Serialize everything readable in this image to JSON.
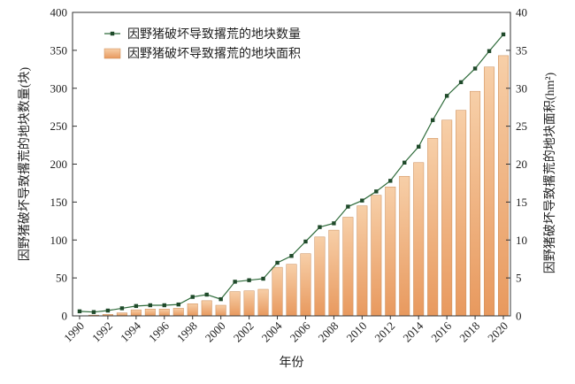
{
  "chart_data": {
    "type": "bar+line",
    "xlabel": "年份",
    "ylabel_left": "因野猪破坏导致撂荒的地块数量(块)",
    "ylabel_right": "因野猪破坏导致撂荒的地块面积(hm²)",
    "ylim_left": [
      0,
      400
    ],
    "ylim_right": [
      0,
      40
    ],
    "yticks_left": [
      0,
      50,
      100,
      150,
      200,
      250,
      300,
      350,
      400
    ],
    "yticks_right": [
      0,
      5,
      10,
      15,
      20,
      25,
      30,
      35,
      40
    ],
    "x": [
      1990,
      1991,
      1992,
      1993,
      1994,
      1995,
      1996,
      1997,
      1998,
      1999,
      2000,
      2001,
      2002,
      2003,
      2004,
      2005,
      2006,
      2007,
      2008,
      2009,
      2010,
      2011,
      2012,
      2013,
      2014,
      2015,
      2016,
      2017,
      2018,
      2019,
      2020
    ],
    "xticks": [
      "1990",
      "1992",
      "1994",
      "1996",
      "1998",
      "2000",
      "2002",
      "2004",
      "2006",
      "2008",
      "2010",
      "2012",
      "2014",
      "2016",
      "2018",
      "2020"
    ],
    "legend": [
      "因野猪破坏导致撂荒的地块数量",
      "因野猪破坏导致撂荒的地块面积"
    ],
    "legend_position": "top-left",
    "series": [
      {
        "name": "因野猪破坏导致撂荒的地块数量",
        "type": "line",
        "axis": "left",
        "color": "#2e6b3a",
        "values": [
          6,
          5,
          7,
          10,
          13,
          14,
          14,
          15,
          25,
          28,
          22,
          45,
          47,
          49,
          70,
          79,
          98,
          117,
          122,
          144,
          152,
          164,
          178,
          202,
          223,
          258,
          290,
          308,
          326,
          349,
          371
        ]
      },
      {
        "name": "因野猪破坏导致撂荒的地块面积",
        "type": "bar",
        "axis": "right",
        "color_top": "#f7cfa8",
        "color_bottom": "#e8995e",
        "values": [
          0.0,
          0.1,
          0.2,
          0.4,
          0.8,
          0.9,
          0.9,
          1.0,
          1.6,
          2.0,
          1.4,
          3.2,
          3.3,
          3.5,
          6.4,
          6.8,
          8.2,
          10.4,
          11.3,
          13.0,
          14.5,
          15.9,
          17.0,
          18.4,
          20.2,
          23.4,
          25.8,
          27.1,
          29.6,
          32.8,
          34.3
        ]
      }
    ]
  }
}
